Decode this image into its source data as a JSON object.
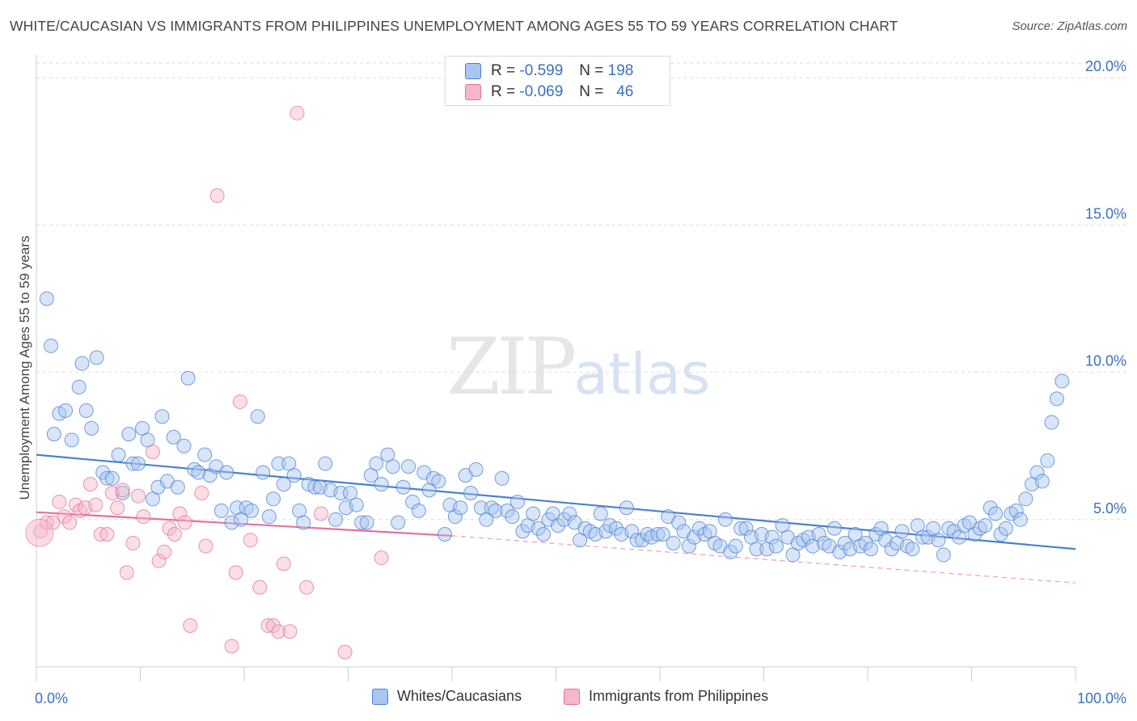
{
  "title": "WHITE/CAUCASIAN VS IMMIGRANTS FROM PHILIPPINES UNEMPLOYMENT AMONG AGES 55 TO 59 YEARS CORRELATION CHART",
  "source": "Source: ZipAtlas.com",
  "watermark": {
    "zip": "ZIP",
    "atlas": "atlas"
  },
  "legend": {
    "r_label": "R =",
    "n_label": "N =",
    "series1": {
      "r": "-0.599",
      "n": "198"
    },
    "series2": {
      "r": "-0.069",
      "n": "46"
    }
  },
  "bottom_legend": {
    "series1": "Whites/Caucasians",
    "series2": "Immigrants from Philippines"
  },
  "colors": {
    "blue": "#4a7fd4",
    "blue_fill": "#a9c6ef",
    "pink": "#e8709a",
    "pink_fill": "#f5b7c9",
    "tick": "#3a6fc4",
    "grid": "#dddddd"
  },
  "chart_data": {
    "type": "scatter",
    "title": "WHITE/CAUCASIAN VS IMMIGRANTS FROM PHILIPPINES UNEMPLOYMENT AMONG AGES 55 TO 59 YEARS CORRELATION CHART",
    "xlabel": "",
    "ylabel": "Unemployment Among Ages 55 to 59 years",
    "xlim": [
      0,
      100
    ],
    "ylim": [
      0,
      20.5
    ],
    "x_tick_labels": [
      "0.0%",
      "100.0%"
    ],
    "y_ticks": [
      5,
      10,
      15,
      20
    ],
    "y_tick_labels": [
      "5.0%",
      "10.0%",
      "15.0%",
      "20.0%"
    ],
    "grid": "horizontal dashed",
    "series": [
      {
        "name": "Whites/Caucasians",
        "color": "#4a7fd4",
        "r": -0.599,
        "n": 198,
        "trend": {
          "x": [
            0,
            100
          ],
          "y": [
            7.2,
            4.0
          ]
        },
        "points": [
          [
            1.0,
            12.5
          ],
          [
            1.4,
            10.9
          ],
          [
            1.7,
            7.9
          ],
          [
            2.2,
            8.6
          ],
          [
            2.8,
            8.7
          ],
          [
            3.4,
            7.7
          ],
          [
            4.1,
            9.5
          ],
          [
            4.4,
            10.3
          ],
          [
            4.8,
            8.7
          ],
          [
            5.3,
            8.1
          ],
          [
            5.8,
            10.5
          ],
          [
            6.4,
            6.6
          ],
          [
            6.8,
            6.4
          ],
          [
            7.3,
            6.4
          ],
          [
            7.9,
            7.2
          ],
          [
            8.3,
            5.9
          ],
          [
            8.9,
            7.9
          ],
          [
            9.3,
            6.9
          ],
          [
            9.8,
            6.9
          ],
          [
            10.2,
            8.1
          ],
          [
            10.7,
            7.7
          ],
          [
            11.2,
            5.7
          ],
          [
            11.7,
            6.1
          ],
          [
            12.1,
            8.5
          ],
          [
            12.6,
            6.3
          ],
          [
            13.2,
            7.8
          ],
          [
            13.6,
            6.1
          ],
          [
            14.2,
            7.5
          ],
          [
            14.6,
            9.8
          ],
          [
            15.2,
            6.7
          ],
          [
            15.6,
            6.6
          ],
          [
            16.2,
            7.2
          ],
          [
            16.7,
            6.5
          ],
          [
            17.3,
            6.8
          ],
          [
            17.8,
            5.3
          ],
          [
            18.3,
            6.6
          ],
          [
            18.8,
            4.9
          ],
          [
            19.3,
            5.4
          ],
          [
            19.7,
            5.0
          ],
          [
            20.2,
            5.4
          ],
          [
            20.7,
            5.3
          ],
          [
            21.3,
            8.5
          ],
          [
            21.8,
            6.6
          ],
          [
            22.4,
            5.1
          ],
          [
            22.8,
            5.7
          ],
          [
            23.3,
            6.9
          ],
          [
            23.8,
            6.2
          ],
          [
            24.3,
            6.9
          ],
          [
            24.8,
            6.5
          ],
          [
            25.3,
            5.3
          ],
          [
            25.7,
            4.9
          ],
          [
            26.2,
            6.2
          ],
          [
            26.8,
            6.1
          ],
          [
            27.3,
            6.1
          ],
          [
            27.8,
            6.9
          ],
          [
            28.3,
            6.0
          ],
          [
            28.8,
            5.0
          ],
          [
            29.3,
            5.9
          ],
          [
            29.8,
            5.4
          ],
          [
            30.2,
            5.9
          ],
          [
            30.8,
            5.5
          ],
          [
            31.3,
            4.9
          ],
          [
            31.8,
            4.9
          ],
          [
            32.2,
            6.5
          ],
          [
            32.7,
            6.9
          ],
          [
            33.2,
            6.2
          ],
          [
            33.8,
            7.2
          ],
          [
            34.3,
            6.8
          ],
          [
            34.8,
            4.9
          ],
          [
            35.3,
            6.1
          ],
          [
            35.8,
            6.8
          ],
          [
            36.2,
            5.6
          ],
          [
            36.8,
            5.3
          ],
          [
            37.3,
            6.6
          ],
          [
            37.8,
            6.0
          ],
          [
            38.2,
            6.4
          ],
          [
            38.7,
            6.3
          ],
          [
            39.3,
            4.5
          ],
          [
            39.8,
            5.5
          ],
          [
            40.3,
            5.1
          ],
          [
            40.8,
            5.4
          ],
          [
            41.3,
            6.5
          ],
          [
            41.8,
            5.9
          ],
          [
            42.3,
            6.7
          ],
          [
            42.8,
            5.4
          ],
          [
            43.3,
            5.0
          ],
          [
            43.8,
            5.4
          ],
          [
            44.2,
            5.3
          ],
          [
            44.8,
            6.4
          ],
          [
            45.3,
            5.3
          ],
          [
            45.8,
            5.1
          ],
          [
            46.3,
            5.6
          ],
          [
            46.8,
            4.6
          ],
          [
            47.3,
            4.8
          ],
          [
            47.8,
            5.2
          ],
          [
            48.3,
            4.7
          ],
          [
            48.8,
            4.5
          ],
          [
            49.3,
            5.0
          ],
          [
            49.7,
            5.2
          ],
          [
            50.2,
            4.8
          ],
          [
            50.8,
            5.0
          ],
          [
            51.3,
            5.2
          ],
          [
            51.8,
            4.9
          ],
          [
            52.3,
            4.3
          ],
          [
            52.8,
            4.7
          ],
          [
            53.3,
            4.6
          ],
          [
            53.8,
            4.5
          ],
          [
            54.3,
            5.2
          ],
          [
            54.8,
            4.6
          ],
          [
            55.2,
            4.8
          ],
          [
            55.8,
            4.7
          ],
          [
            56.3,
            4.5
          ],
          [
            56.8,
            5.4
          ],
          [
            57.3,
            4.6
          ],
          [
            57.8,
            4.3
          ],
          [
            58.3,
            4.3
          ],
          [
            58.8,
            4.5
          ],
          [
            59.2,
            4.4
          ],
          [
            59.8,
            4.5
          ],
          [
            60.3,
            4.5
          ],
          [
            60.8,
            5.1
          ],
          [
            61.3,
            4.2
          ],
          [
            61.8,
            4.9
          ],
          [
            62.3,
            4.6
          ],
          [
            62.8,
            4.1
          ],
          [
            63.3,
            4.4
          ],
          [
            63.8,
            4.7
          ],
          [
            64.3,
            4.5
          ],
          [
            64.8,
            4.6
          ],
          [
            65.3,
            4.2
          ],
          [
            65.8,
            4.1
          ],
          [
            66.3,
            5.0
          ],
          [
            66.8,
            3.9
          ],
          [
            67.3,
            4.1
          ],
          [
            67.8,
            4.7
          ],
          [
            68.3,
            4.7
          ],
          [
            68.8,
            4.4
          ],
          [
            69.3,
            4.0
          ],
          [
            69.8,
            4.5
          ],
          [
            70.3,
            4.0
          ],
          [
            70.8,
            4.4
          ],
          [
            71.2,
            4.1
          ],
          [
            71.8,
            4.8
          ],
          [
            72.3,
            4.4
          ],
          [
            72.8,
            3.8
          ],
          [
            73.3,
            4.2
          ],
          [
            73.8,
            4.3
          ],
          [
            74.3,
            4.4
          ],
          [
            74.7,
            4.1
          ],
          [
            75.3,
            4.5
          ],
          [
            75.8,
            4.2
          ],
          [
            76.3,
            4.1
          ],
          [
            76.8,
            4.7
          ],
          [
            77.3,
            3.9
          ],
          [
            77.8,
            4.2
          ],
          [
            78.3,
            4.0
          ],
          [
            78.8,
            4.5
          ],
          [
            79.3,
            4.1
          ],
          [
            79.8,
            4.2
          ],
          [
            80.3,
            4.0
          ],
          [
            80.8,
            4.5
          ],
          [
            81.3,
            4.7
          ],
          [
            81.7,
            4.3
          ],
          [
            82.3,
            4.0
          ],
          [
            82.8,
            4.2
          ],
          [
            83.3,
            4.6
          ],
          [
            83.8,
            4.1
          ],
          [
            84.3,
            4.0
          ],
          [
            84.8,
            4.8
          ],
          [
            85.3,
            4.4
          ],
          [
            85.8,
            4.4
          ],
          [
            86.3,
            4.7
          ],
          [
            86.8,
            4.3
          ],
          [
            87.3,
            3.8
          ],
          [
            87.8,
            4.7
          ],
          [
            88.3,
            4.6
          ],
          [
            88.8,
            4.4
          ],
          [
            89.3,
            4.8
          ],
          [
            89.8,
            4.9
          ],
          [
            90.3,
            4.5
          ],
          [
            90.8,
            4.7
          ],
          [
            91.3,
            4.8
          ],
          [
            91.8,
            5.4
          ],
          [
            92.3,
            5.2
          ],
          [
            92.8,
            4.5
          ],
          [
            93.3,
            4.7
          ],
          [
            93.8,
            5.2
          ],
          [
            94.3,
            5.3
          ],
          [
            94.7,
            5.0
          ],
          [
            95.2,
            5.7
          ],
          [
            95.8,
            6.2
          ],
          [
            96.3,
            6.6
          ],
          [
            96.8,
            6.3
          ],
          [
            97.3,
            7.0
          ],
          [
            97.7,
            8.3
          ],
          [
            98.2,
            9.1
          ],
          [
            98.7,
            9.7
          ]
        ]
      },
      {
        "name": "Immigrants from Philippines",
        "color": "#e8709a",
        "r": -0.069,
        "n": 46,
        "trend": {
          "x": [
            0,
            40
          ],
          "y": [
            5.25,
            4.45
          ]
        },
        "trend_dashed": {
          "x": [
            40,
            100
          ],
          "y": [
            4.45,
            2.85
          ]
        },
        "points": [
          [
            0.4,
            4.6
          ],
          [
            1.0,
            4.9
          ],
          [
            1.6,
            4.9
          ],
          [
            2.2,
            5.6
          ],
          [
            2.7,
            5.1
          ],
          [
            3.2,
            4.9
          ],
          [
            3.8,
            5.5
          ],
          [
            4.2,
            5.3
          ],
          [
            4.7,
            5.4
          ],
          [
            5.2,
            6.2
          ],
          [
            5.7,
            5.5
          ],
          [
            6.2,
            4.5
          ],
          [
            6.8,
            4.5
          ],
          [
            7.3,
            5.9
          ],
          [
            7.8,
            5.4
          ],
          [
            8.3,
            6.0
          ],
          [
            8.7,
            3.2
          ],
          [
            9.3,
            4.2
          ],
          [
            9.8,
            5.8
          ],
          [
            10.3,
            5.1
          ],
          [
            11.2,
            7.3
          ],
          [
            11.8,
            3.6
          ],
          [
            12.3,
            3.9
          ],
          [
            12.8,
            4.7
          ],
          [
            13.3,
            4.5
          ],
          [
            13.8,
            5.2
          ],
          [
            14.3,
            4.9
          ],
          [
            14.8,
            1.4
          ],
          [
            15.9,
            5.9
          ],
          [
            16.3,
            4.1
          ],
          [
            17.4,
            16.0
          ],
          [
            18.8,
            0.7
          ],
          [
            19.2,
            3.2
          ],
          [
            19.6,
            9.0
          ],
          [
            20.6,
            4.3
          ],
          [
            21.5,
            2.7
          ],
          [
            22.3,
            1.4
          ],
          [
            22.8,
            1.4
          ],
          [
            23.3,
            1.2
          ],
          [
            23.8,
            3.5
          ],
          [
            24.4,
            1.2
          ],
          [
            25.1,
            18.8
          ],
          [
            26.0,
            2.7
          ],
          [
            27.4,
            5.2
          ],
          [
            29.7,
            0.5
          ],
          [
            33.2,
            3.7
          ]
        ]
      }
    ]
  }
}
